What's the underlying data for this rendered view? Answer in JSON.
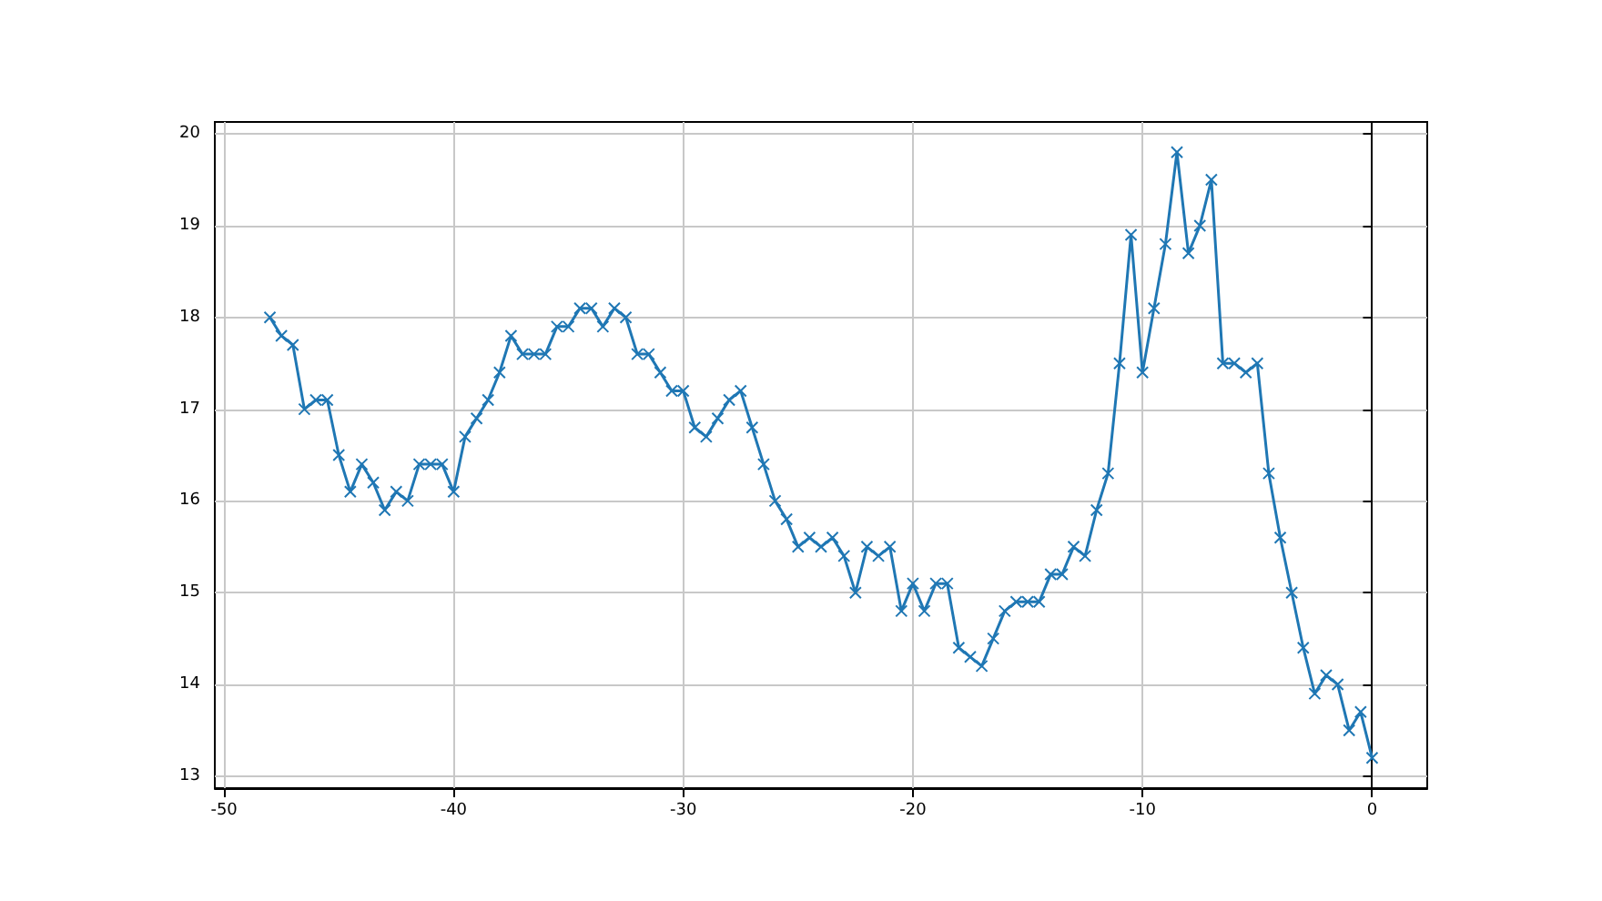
{
  "chart_data": {
    "type": "line",
    "x": [
      -48,
      -47.5,
      -47,
      -46.5,
      -46,
      -45.5,
      -45,
      -44.5,
      -44,
      -43.5,
      -43,
      -42.5,
      -42,
      -41.5,
      -41,
      -40.5,
      -40,
      -39.5,
      -39,
      -38.5,
      -38,
      -37.5,
      -37,
      -36.5,
      -36,
      -35.5,
      -35,
      -34.5,
      -34,
      -33.5,
      -33,
      -32.5,
      -32,
      -31.5,
      -31,
      -30.5,
      -30,
      -29.5,
      -29,
      -28.5,
      -28,
      -27.5,
      -27,
      -26.5,
      -26,
      -25.5,
      -25,
      -24.5,
      -24,
      -23.5,
      -23,
      -22.5,
      -22,
      -21.5,
      -21,
      -20.5,
      -20,
      -19.5,
      -19,
      -18.5,
      -18,
      -17.5,
      -17,
      -16.5,
      -16,
      -15.5,
      -15,
      -14.5,
      -14,
      -13.5,
      -13,
      -12.5,
      -12,
      -11.5,
      -11,
      -10.5,
      -10,
      -9.5,
      -9,
      -8.5,
      -8,
      -7.5,
      -7,
      -6.5,
      -6,
      -5.5,
      -5,
      -4.5,
      -4,
      -3.5,
      -3,
      -2.5,
      -2,
      -1.5,
      -1,
      -0.5,
      0
    ],
    "series": [
      {
        "color": "#1f77b4",
        "values": [
          18.0,
          17.8,
          17.7,
          17.0,
          17.1,
          17.1,
          16.5,
          16.1,
          16.4,
          16.2,
          15.9,
          16.1,
          16.0,
          16.4,
          16.4,
          16.4,
          16.1,
          16.7,
          16.9,
          17.1,
          17.4,
          17.8,
          17.6,
          17.6,
          17.6,
          17.9,
          17.9,
          18.1,
          18.1,
          17.9,
          18.1,
          18.0,
          17.6,
          17.6,
          17.4,
          17.2,
          17.2,
          16.8,
          16.7,
          16.9,
          17.1,
          17.2,
          16.8,
          16.4,
          16.0,
          15.8,
          15.5,
          15.6,
          15.5,
          15.6,
          15.4,
          15.0,
          15.5,
          15.4,
          15.5,
          14.8,
          15.1,
          14.8,
          15.1,
          15.1,
          14.4,
          14.3,
          14.2,
          14.5,
          14.8,
          14.9,
          14.9,
          14.9,
          15.2,
          15.2,
          15.5,
          15.4,
          15.9,
          16.3,
          17.5,
          18.9,
          17.4,
          18.1,
          18.8,
          19.8,
          18.7,
          19.0,
          19.5,
          17.5,
          17.5,
          17.4,
          17.5,
          16.3,
          15.6,
          15.0,
          14.4,
          13.9,
          14.1,
          14.0,
          13.5,
          13.7,
          13.2
        ]
      }
    ],
    "xlim": [
      -50.4,
      2.4
    ],
    "ylim": [
      12.87,
      20.13
    ],
    "xticks": [
      -50,
      -40,
      -30,
      -20,
      -10,
      0
    ],
    "yticks": [
      13,
      14,
      15,
      16,
      17,
      18,
      19,
      20
    ],
    "grid": true,
    "marker": "cross",
    "line_style": "solid"
  }
}
